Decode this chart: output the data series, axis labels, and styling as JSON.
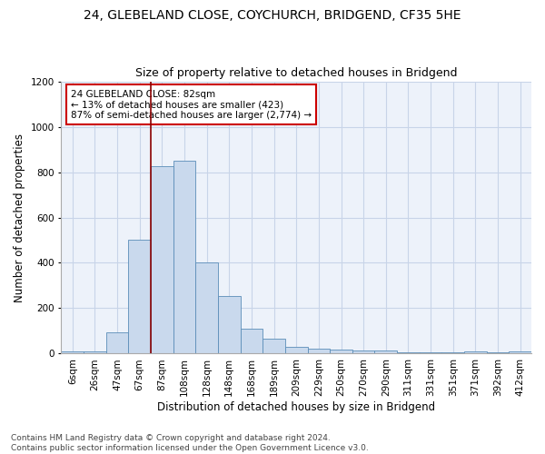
{
  "title1": "24, GLEBELAND CLOSE, COYCHURCH, BRIDGEND, CF35 5HE",
  "title2": "Size of property relative to detached houses in Bridgend",
  "xlabel": "Distribution of detached houses by size in Bridgend",
  "ylabel": "Number of detached properties",
  "categories": [
    "6sqm",
    "26sqm",
    "47sqm",
    "67sqm",
    "87sqm",
    "108sqm",
    "128sqm",
    "148sqm",
    "168sqm",
    "189sqm",
    "209sqm",
    "229sqm",
    "250sqm",
    "270sqm",
    "290sqm",
    "311sqm",
    "331sqm",
    "351sqm",
    "371sqm",
    "392sqm",
    "412sqm"
  ],
  "values": [
    10,
    10,
    95,
    500,
    825,
    850,
    400,
    255,
    110,
    65,
    30,
    20,
    18,
    12,
    12,
    6,
    6,
    6,
    10,
    5,
    10
  ],
  "bar_color": "#c9d9ed",
  "bar_edge_color": "#5b8db8",
  "vline_color": "#8b0000",
  "annotation_text": "24 GLEBELAND CLOSE: 82sqm\n← 13% of detached houses are smaller (423)\n87% of semi-detached houses are larger (2,774) →",
  "annotation_box_color": "#ffffff",
  "annotation_edge_color": "#cc0000",
  "ylim": [
    0,
    1200
  ],
  "yticks": [
    0,
    200,
    400,
    600,
    800,
    1000,
    1200
  ],
  "footnote": "Contains HM Land Registry data © Crown copyright and database right 2024.\nContains public sector information licensed under the Open Government Licence v3.0.",
  "bg_color": "#edf2fa",
  "grid_color": "#c8d4e8",
  "title_fontsize": 10,
  "subtitle_fontsize": 9,
  "xlabel_fontsize": 8.5,
  "ylabel_fontsize": 8.5,
  "tick_fontsize": 7.5,
  "footnote_fontsize": 6.5
}
